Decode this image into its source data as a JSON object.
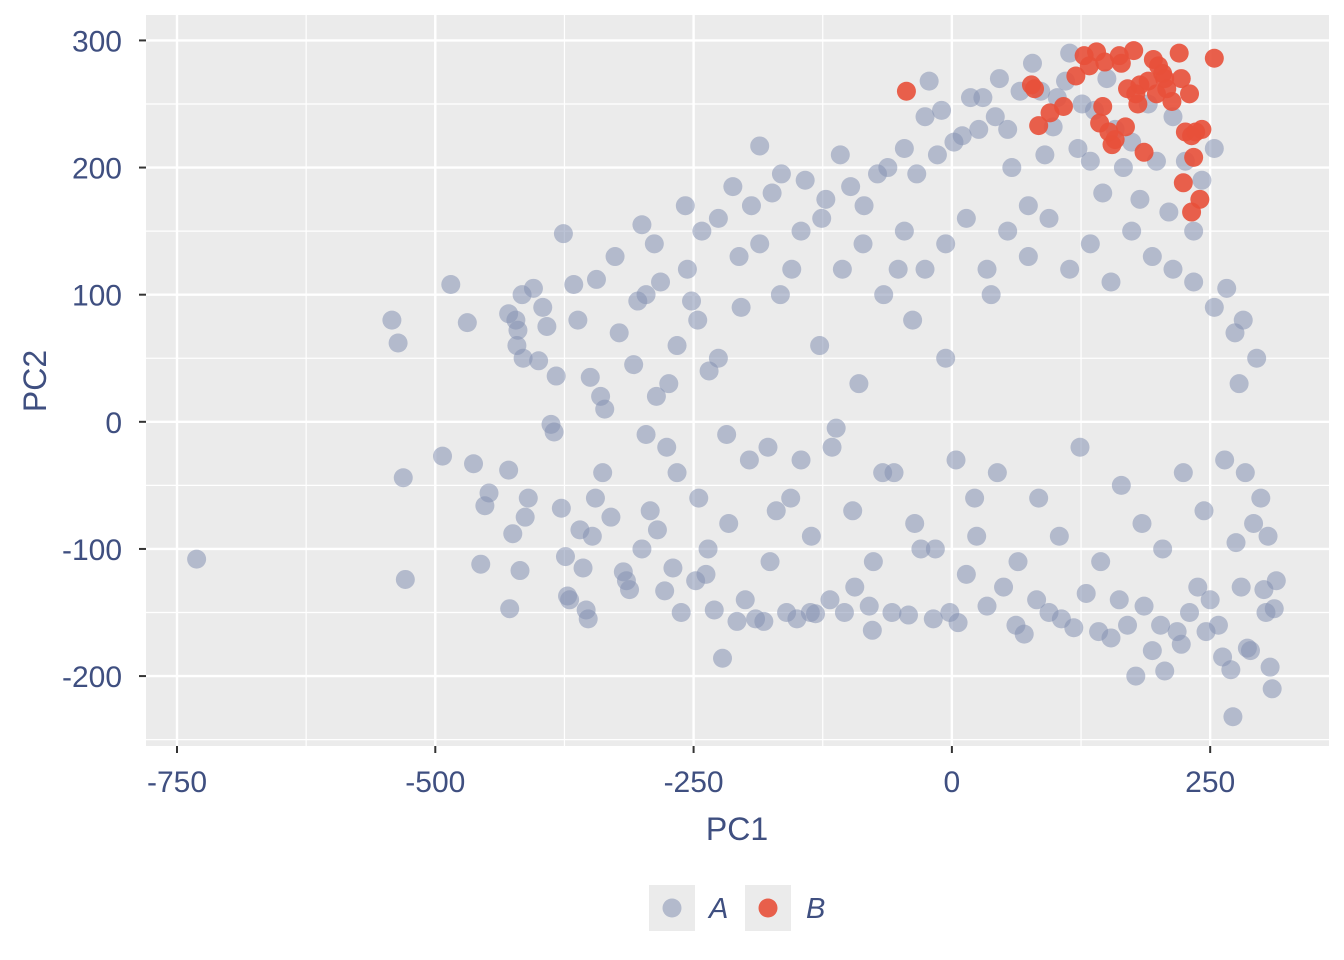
{
  "chart_data": {
    "type": "scatter",
    "title": "",
    "xlabel": "PC1",
    "ylabel": "PC2",
    "xlim": [
      -780,
      365
    ],
    "ylim": [
      -255,
      320
    ],
    "x_ticks": [
      -750,
      -500,
      -250,
      0,
      250
    ],
    "x_tick_labels": [
      "-750",
      "-500",
      "-250",
      "0",
      "250"
    ],
    "y_ticks": [
      -200,
      -100,
      0,
      100,
      200,
      300
    ],
    "y_tick_labels": [
      "-200",
      "-100",
      "0",
      "100",
      "200",
      "300"
    ],
    "grid": true,
    "legend_position": "bottom",
    "series": [
      {
        "name": "A",
        "color": "#8591b3",
        "opacity": 0.55,
        "points": [
          [
            -731,
            -108
          ],
          [
            -542,
            80
          ],
          [
            -536,
            62
          ],
          [
            -531,
            -44
          ],
          [
            -529,
            -124
          ],
          [
            -485,
            108
          ],
          [
            -493,
            -27
          ],
          [
            -469,
            78
          ],
          [
            -463,
            -33
          ],
          [
            -456,
            -112
          ],
          [
            -452,
            -66
          ],
          [
            -448,
            -56
          ],
          [
            -428,
            -147
          ],
          [
            -429,
            -38
          ],
          [
            -429,
            85
          ],
          [
            -425,
            -88
          ],
          [
            -422,
            80
          ],
          [
            -421,
            60
          ],
          [
            -420,
            72
          ],
          [
            -418,
            -117
          ],
          [
            -416,
            100
          ],
          [
            -415,
            50
          ],
          [
            -413,
            -75
          ],
          [
            -410,
            -60
          ],
          [
            -405,
            105
          ],
          [
            -400,
            48
          ],
          [
            -396,
            90
          ],
          [
            -392,
            75
          ],
          [
            -388,
            -2
          ],
          [
            -385,
            -8
          ],
          [
            -383,
            36
          ],
          [
            -378,
            -68
          ],
          [
            -376,
            148
          ],
          [
            -374,
            -106
          ],
          [
            -372,
            -137
          ],
          [
            -370,
            -140
          ],
          [
            -366,
            108
          ],
          [
            -362,
            80
          ],
          [
            -360,
            -85
          ],
          [
            -357,
            -115
          ],
          [
            -354,
            -148
          ],
          [
            -352,
            -155
          ],
          [
            -350,
            35
          ],
          [
            -348,
            -90
          ],
          [
            -345,
            -60
          ],
          [
            -344,
            112
          ],
          [
            -340,
            20
          ],
          [
            -338,
            -40
          ],
          [
            -336,
            10
          ],
          [
            -330,
            -75
          ],
          [
            -326,
            130
          ],
          [
            -322,
            70
          ],
          [
            -318,
            -118
          ],
          [
            -315,
            -125
          ],
          [
            -312,
            -132
          ],
          [
            -308,
            45
          ],
          [
            -304,
            95
          ],
          [
            -300,
            155
          ],
          [
            -296,
            -10
          ],
          [
            -292,
            -70
          ],
          [
            -288,
            140
          ],
          [
            -285,
            -85
          ],
          [
            -282,
            110
          ],
          [
            -278,
            -133
          ],
          [
            -274,
            30
          ],
          [
            -270,
            -115
          ],
          [
            -266,
            60
          ],
          [
            -262,
            -150
          ],
          [
            -258,
            170
          ],
          [
            -252,
            95
          ],
          [
            -248,
            -125
          ],
          [
            -245,
            -60
          ],
          [
            -242,
            150
          ],
          [
            -238,
            -120
          ],
          [
            -235,
            40
          ],
          [
            -230,
            -148
          ],
          [
            -226,
            160
          ],
          [
            -222,
            -186
          ],
          [
            -218,
            -10
          ],
          [
            -212,
            185
          ],
          [
            -208,
            -157
          ],
          [
            -204,
            90
          ],
          [
            -200,
            -140
          ],
          [
            -194,
            170
          ],
          [
            -190,
            -155
          ],
          [
            -186,
            217
          ],
          [
            -182,
            -157
          ],
          [
            -178,
            -20
          ],
          [
            -174,
            180
          ],
          [
            -170,
            -70
          ],
          [
            -165,
            195
          ],
          [
            -160,
            -150
          ],
          [
            -155,
            120
          ],
          [
            -150,
            -155
          ],
          [
            -146,
            -30
          ],
          [
            -142,
            190
          ],
          [
            -137,
            -150
          ],
          [
            -132,
            -151
          ],
          [
            -128,
            60
          ],
          [
            -122,
            175
          ],
          [
            -118,
            -140
          ],
          [
            -112,
            -5
          ],
          [
            -108,
            210
          ],
          [
            -104,
            -150
          ],
          [
            -98,
            185
          ],
          [
            -94,
            -130
          ],
          [
            -90,
            30
          ],
          [
            -85,
            170
          ],
          [
            -80,
            -145
          ],
          [
            -77,
            -164
          ],
          [
            -72,
            195
          ],
          [
            -67,
            -40
          ],
          [
            -62,
            200
          ],
          [
            -58,
            -150
          ],
          [
            -52,
            120
          ],
          [
            -46,
            215
          ],
          [
            -42,
            -152
          ],
          [
            -38,
            80
          ],
          [
            -34,
            195
          ],
          [
            -30,
            -100
          ],
          [
            -26,
            240
          ],
          [
            -22,
            268
          ],
          [
            -18,
            -155
          ],
          [
            -14,
            210
          ],
          [
            -10,
            245
          ],
          [
            -6,
            50
          ],
          [
            -2,
            -150
          ],
          [
            2,
            220
          ],
          [
            6,
            -158
          ],
          [
            10,
            225
          ],
          [
            14,
            -120
          ],
          [
            18,
            255
          ],
          [
            22,
            -60
          ],
          [
            26,
            230
          ],
          [
            30,
            255
          ],
          [
            34,
            -145
          ],
          [
            38,
            100
          ],
          [
            42,
            240
          ],
          [
            46,
            270
          ],
          [
            50,
            -130
          ],
          [
            54,
            230
          ],
          [
            58,
            200
          ],
          [
            62,
            -160
          ],
          [
            66,
            260
          ],
          [
            70,
            -167
          ],
          [
            74,
            170
          ],
          [
            78,
            282
          ],
          [
            82,
            -140
          ],
          [
            86,
            260
          ],
          [
            90,
            210
          ],
          [
            94,
            -150
          ],
          [
            98,
            232
          ],
          [
            102,
            255
          ],
          [
            106,
            -155
          ],
          [
            110,
            268
          ],
          [
            114,
            290
          ],
          [
            118,
            -162
          ],
          [
            122,
            215
          ],
          [
            126,
            250
          ],
          [
            130,
            -135
          ],
          [
            134,
            205
          ],
          [
            138,
            245
          ],
          [
            142,
            -165
          ],
          [
            146,
            180
          ],
          [
            150,
            270
          ],
          [
            154,
            -170
          ],
          [
            158,
            230
          ],
          [
            162,
            -140
          ],
          [
            166,
            200
          ],
          [
            170,
            -160
          ],
          [
            174,
            220
          ],
          [
            178,
            -200
          ],
          [
            182,
            175
          ],
          [
            186,
            -145
          ],
          [
            190,
            250
          ],
          [
            194,
            -180
          ],
          [
            198,
            205
          ],
          [
            202,
            -160
          ],
          [
            206,
            -196
          ],
          [
            210,
            165
          ],
          [
            214,
            240
          ],
          [
            218,
            -165
          ],
          [
            222,
            -175
          ],
          [
            226,
            205
          ],
          [
            230,
            -150
          ],
          [
            234,
            150
          ],
          [
            238,
            -130
          ],
          [
            242,
            190
          ],
          [
            246,
            -165
          ],
          [
            250,
            -140
          ],
          [
            254,
            215
          ],
          [
            258,
            -160
          ],
          [
            262,
            -185
          ],
          [
            266,
            105
          ],
          [
            270,
            -195
          ],
          [
            272,
            -232
          ],
          [
            275,
            -95
          ],
          [
            278,
            30
          ],
          [
            280,
            -130
          ],
          [
            282,
            80
          ],
          [
            286,
            -178
          ],
          [
            289,
            -180
          ],
          [
            292,
            -80
          ],
          [
            295,
            50
          ],
          [
            299,
            -60
          ],
          [
            302,
            -132
          ],
          [
            304,
            -150
          ],
          [
            306,
            -90
          ],
          [
            308,
            -193
          ],
          [
            310,
            -210
          ],
          [
            312,
            -147
          ],
          [
            314,
            -125
          ],
          [
            -300,
            -100
          ],
          [
            -296,
            100
          ],
          [
            -286,
            20
          ],
          [
            -276,
            -20
          ],
          [
            -266,
            -40
          ],
          [
            -256,
            120
          ],
          [
            -246,
            80
          ],
          [
            -236,
            -100
          ],
          [
            -226,
            50
          ],
          [
            -216,
            -80
          ],
          [
            -206,
            130
          ],
          [
            -196,
            -30
          ],
          [
            -186,
            140
          ],
          [
            -176,
            -110
          ],
          [
            -166,
            100
          ],
          [
            -156,
            -60
          ],
          [
            -146,
            150
          ],
          [
            -136,
            -90
          ],
          [
            -126,
            160
          ],
          [
            -116,
            -20
          ],
          [
            -106,
            120
          ],
          [
            -96,
            -70
          ],
          [
            -86,
            140
          ],
          [
            -76,
            -110
          ],
          [
            -66,
            100
          ],
          [
            -56,
            -40
          ],
          [
            -46,
            150
          ],
          [
            -36,
            -80
          ],
          [
            -26,
            120
          ],
          [
            -16,
            -100
          ],
          [
            -6,
            140
          ],
          [
            4,
            -30
          ],
          [
            14,
            160
          ],
          [
            24,
            -90
          ],
          [
            34,
            120
          ],
          [
            44,
            -40
          ],
          [
            54,
            150
          ],
          [
            64,
            -110
          ],
          [
            74,
            130
          ],
          [
            84,
            -60
          ],
          [
            94,
            160
          ],
          [
            104,
            -90
          ],
          [
            114,
            120
          ],
          [
            124,
            -20
          ],
          [
            134,
            140
          ],
          [
            144,
            -110
          ],
          [
            154,
            110
          ],
          [
            164,
            -50
          ],
          [
            174,
            150
          ],
          [
            184,
            -80
          ],
          [
            194,
            130
          ],
          [
            204,
            -100
          ],
          [
            214,
            120
          ],
          [
            224,
            -40
          ],
          [
            234,
            110
          ],
          [
            244,
            -70
          ],
          [
            254,
            90
          ],
          [
            264,
            -30
          ],
          [
            274,
            70
          ],
          [
            284,
            -40
          ]
        ]
      },
      {
        "name": "B",
        "color": "#e8503a",
        "opacity": 0.9,
        "points": [
          [
            -44,
            260
          ],
          [
            77,
            265
          ],
          [
            80,
            262
          ],
          [
            84,
            233
          ],
          [
            95,
            243
          ],
          [
            108,
            248
          ],
          [
            120,
            272
          ],
          [
            128,
            288
          ],
          [
            140,
            291
          ],
          [
            133,
            280
          ],
          [
            148,
            283
          ],
          [
            146,
            248
          ],
          [
            143,
            235
          ],
          [
            152,
            228
          ],
          [
            155,
            218
          ],
          [
            158,
            222
          ],
          [
            162,
            288
          ],
          [
            164,
            282
          ],
          [
            168,
            232
          ],
          [
            170,
            262
          ],
          [
            176,
            292
          ],
          [
            178,
            258
          ],
          [
            180,
            250
          ],
          [
            182,
            265
          ],
          [
            186,
            212
          ],
          [
            190,
            268
          ],
          [
            195,
            285
          ],
          [
            198,
            258
          ],
          [
            200,
            280
          ],
          [
            204,
            274
          ],
          [
            208,
            262
          ],
          [
            213,
            252
          ],
          [
            220,
            290
          ],
          [
            222,
            270
          ],
          [
            226,
            228
          ],
          [
            230,
            258
          ],
          [
            232,
            225
          ],
          [
            234,
            208
          ],
          [
            236,
            228
          ],
          [
            240,
            175
          ],
          [
            242,
            230
          ],
          [
            224,
            188
          ],
          [
            232,
            165
          ],
          [
            254,
            286
          ],
          [
            206,
            270
          ]
        ]
      }
    ]
  },
  "legend": {
    "items": [
      {
        "label": "A",
        "color": "#8591b3"
      },
      {
        "label": "B",
        "color": "#e8503a"
      }
    ]
  }
}
